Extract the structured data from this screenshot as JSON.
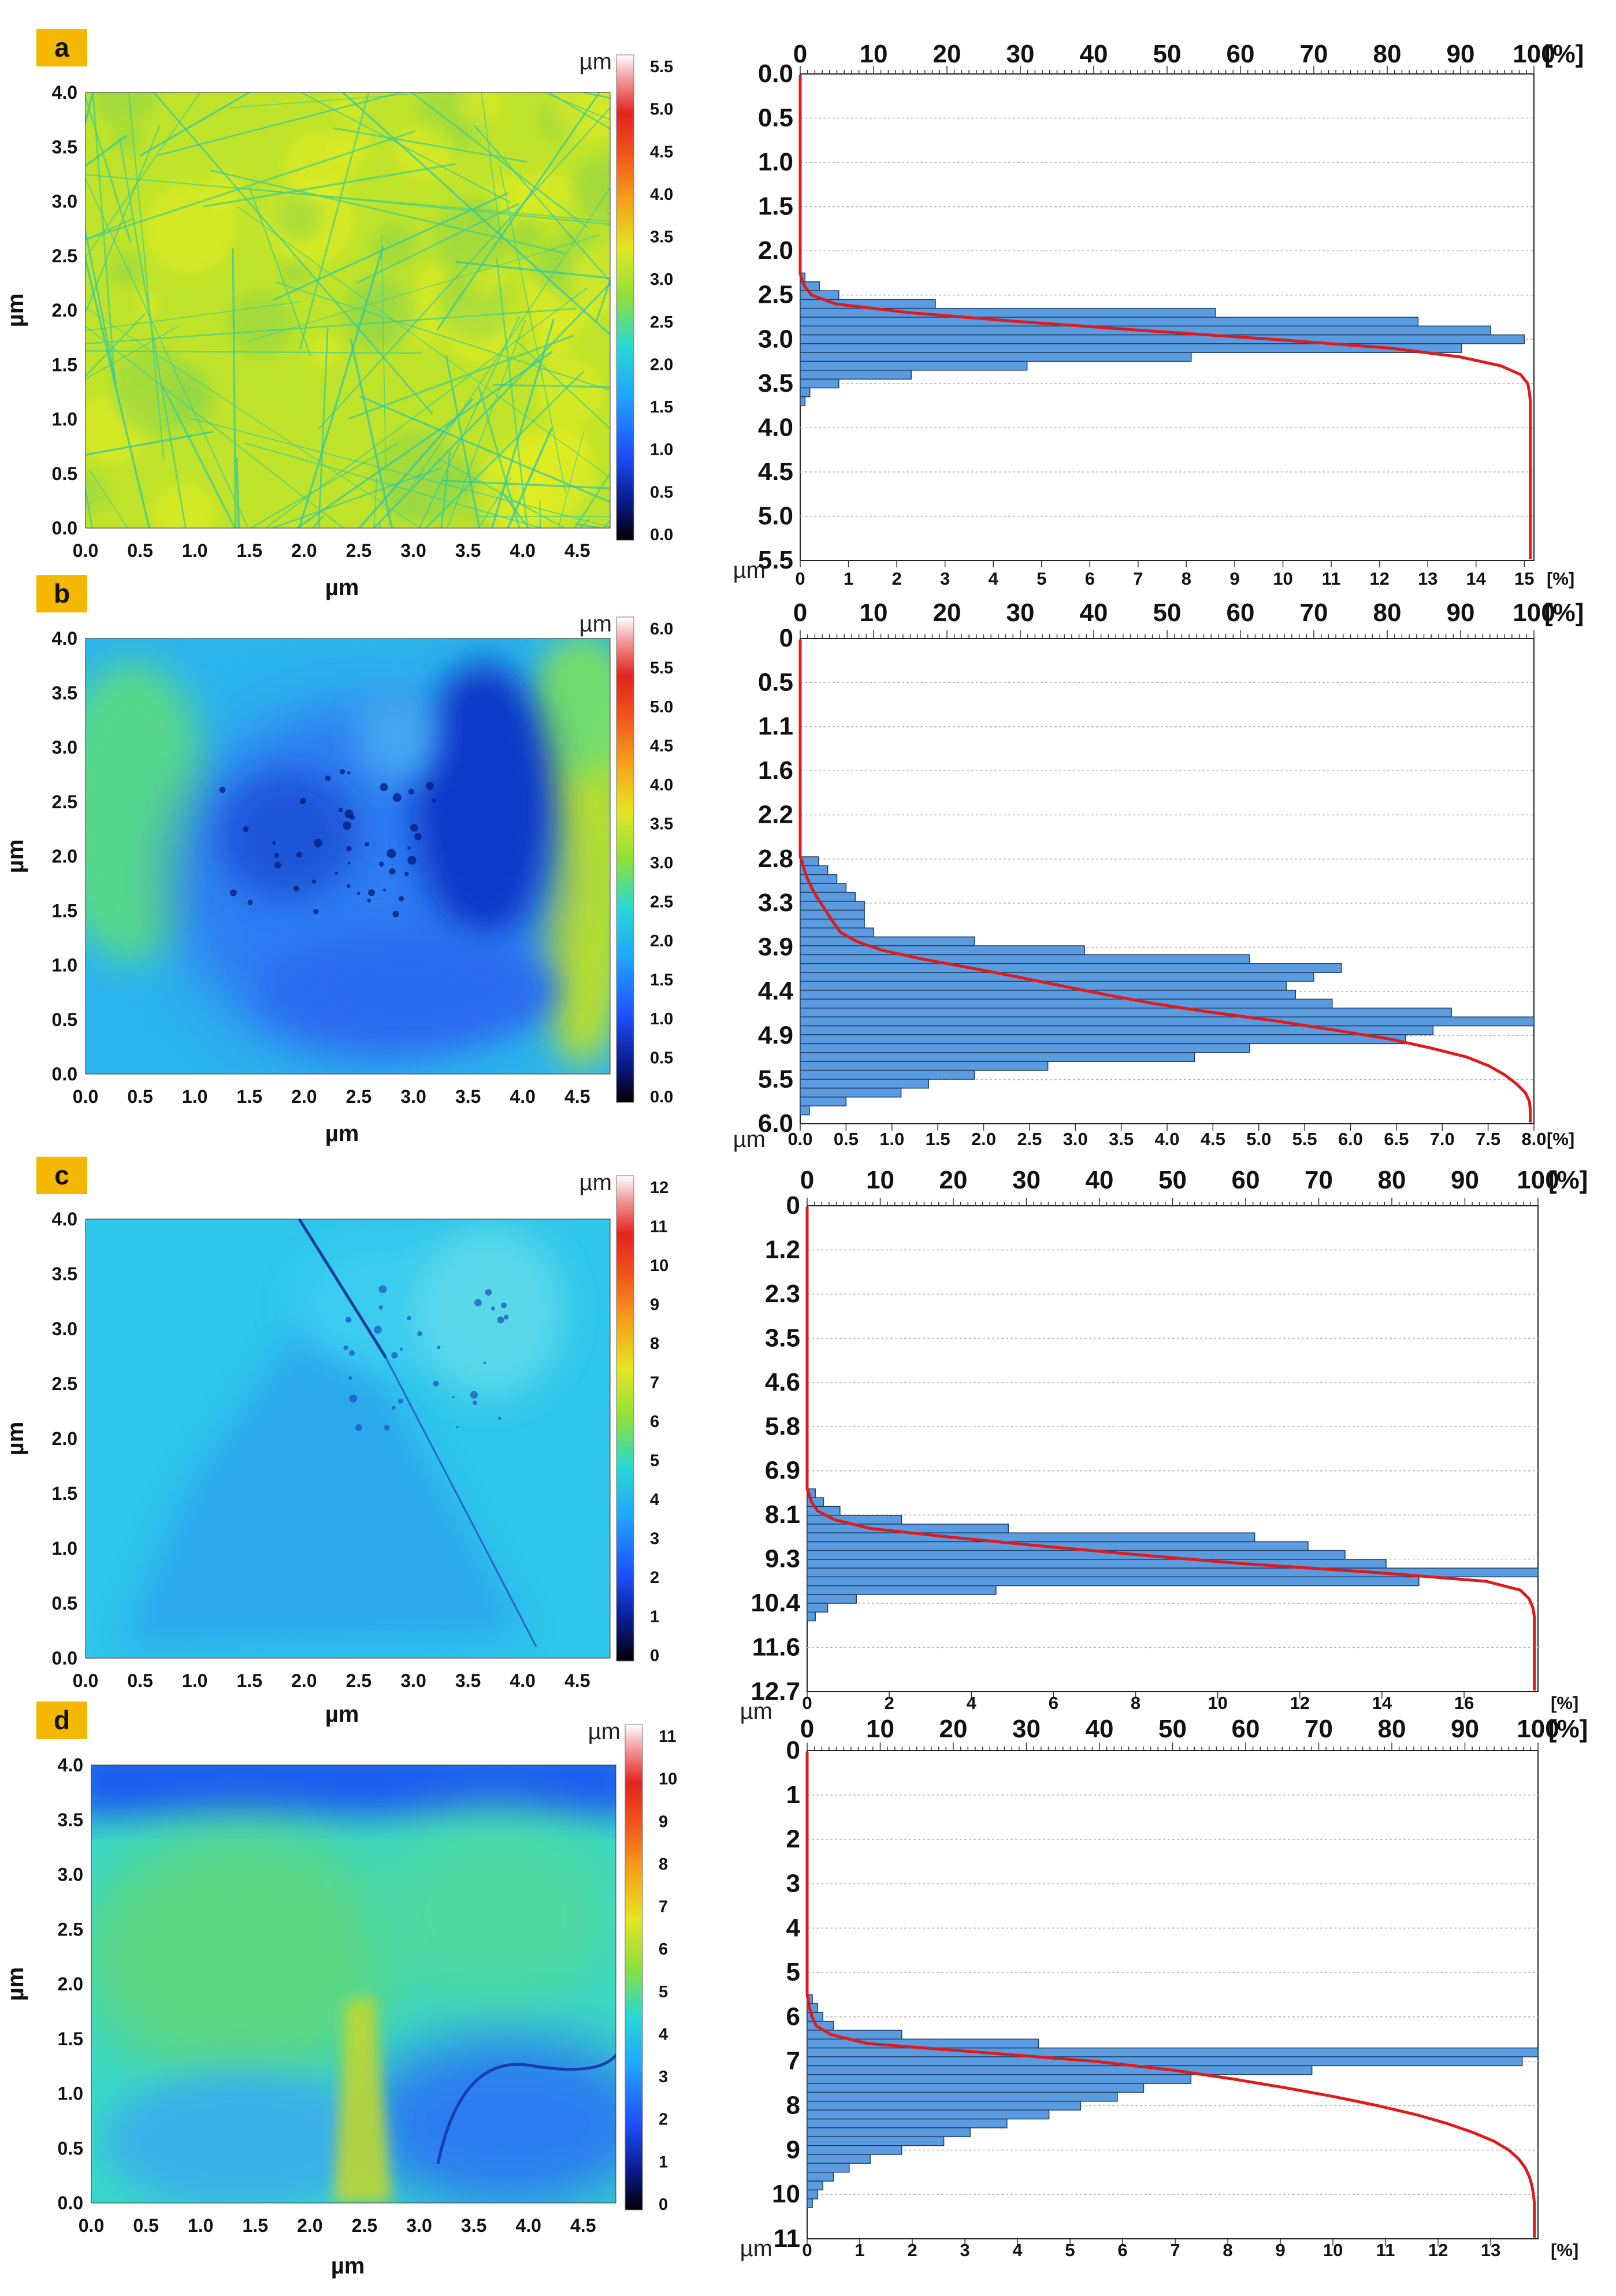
{
  "figure": {
    "colors": {
      "panel_label_bg": "#f5b800",
      "bar_fill": "#5b9be0",
      "bar_stroke": "#1f3f66",
      "cumulative_line": "#e01a1a",
      "grid": "#b5b5b5"
    },
    "map_xlabel": "µm",
    "map_ylabel": "µm",
    "map_x_ticks": [
      "0.0",
      "0.5",
      "1.0",
      "1.5",
      "2.0",
      "2.5",
      "3.0",
      "3.5",
      "4.0",
      "4.5"
    ],
    "map_y_ticks": [
      "0.0",
      "0.5",
      "1.0",
      "1.5",
      "2.0",
      "2.5",
      "3.0",
      "3.5",
      "4.0"
    ],
    "cumulative_axis_unit": "[%]",
    "cumulative_ticks": [
      "0",
      "10",
      "20",
      "30",
      "40",
      "50",
      "60",
      "70",
      "80",
      "90",
      "100"
    ],
    "hist_axis_unit": "[%]",
    "colorbar_unit": "µm"
  },
  "chart_data": [
    {
      "id": "a",
      "label": "a",
      "type": "bar",
      "map_theme": "scratches",
      "colorbar_ticks": [
        "0.0",
        "0.5",
        "1.0",
        "1.5",
        "2.0",
        "2.5",
        "3.0",
        "3.5",
        "4.0",
        "4.5",
        "5.0",
        "5.5"
      ],
      "depth_ticks": [
        "0.0",
        "0.5",
        "1.0",
        "1.5",
        "2.0",
        "2.5",
        "3.0",
        "3.5",
        "4.0",
        "4.5",
        "5.0",
        "5.5"
      ],
      "depth_range": [
        0,
        5.5
      ],
      "hist_ticks": [
        "0",
        "1",
        "2",
        "3",
        "4",
        "5",
        "6",
        "7",
        "8",
        "9",
        "10",
        "11",
        "12",
        "13",
        "14",
        "15"
      ],
      "hist_max": 15.2,
      "hist_start": 2.25,
      "hist_bin": 0.1,
      "hist_values": [
        0.1,
        0.4,
        0.8,
        2.8,
        8.6,
        12.8,
        14.3,
        15.0,
        13.7,
        8.1,
        4.7,
        2.3,
        0.8,
        0.2,
        0.1
      ],
      "yaxis_unit": "µm"
    },
    {
      "id": "b",
      "label": "b",
      "type": "bar",
      "map_theme": "blob",
      "colorbar_ticks": [
        "0.0",
        "0.5",
        "1.0",
        "1.5",
        "2.0",
        "2.5",
        "3.0",
        "3.5",
        "4.0",
        "4.5",
        "5.0",
        "5.5",
        "6.0"
      ],
      "depth_ticks": [
        "0",
        "0.5",
        "1.1",
        "1.6",
        "2.2",
        "2.8",
        "3.3",
        "3.9",
        "4.4",
        "4.9",
        "5.5",
        "6.0"
      ],
      "depth_range": [
        0,
        6.0
      ],
      "hist_ticks": [
        "0.0",
        "0.5",
        "1.0",
        "1.5",
        "2.0",
        "2.5",
        "3.0",
        "3.5",
        "4.0",
        "4.5",
        "5.0",
        "5.5",
        "6.0",
        "6.5",
        "7.0",
        "7.5",
        "8.0"
      ],
      "hist_max": 8.0,
      "hist_start": 2.7,
      "hist_bin": 0.11,
      "hist_values": [
        0.2,
        0.3,
        0.4,
        0.5,
        0.6,
        0.7,
        0.7,
        0.7,
        0.8,
        1.9,
        3.1,
        4.9,
        5.9,
        5.6,
        5.3,
        5.4,
        5.8,
        7.1,
        8.0,
        6.9,
        6.6,
        4.9,
        4.3,
        2.7,
        1.9,
        1.4,
        1.1,
        0.5,
        0.1
      ],
      "yaxis_unit": "µm"
    },
    {
      "id": "c",
      "label": "c",
      "type": "bar",
      "map_theme": "crack",
      "colorbar_ticks": [
        "0",
        "1",
        "2",
        "3",
        "4",
        "5",
        "6",
        "7",
        "8",
        "9",
        "10",
        "11",
        "12"
      ],
      "depth_ticks": [
        "0",
        "1.2",
        "2.3",
        "3.5",
        "4.6",
        "5.8",
        "6.9",
        "8.1",
        "9.3",
        "10.4",
        "11.6",
        "12.7"
      ],
      "depth_range": [
        0,
        12.7
      ],
      "hist_ticks": [
        "0",
        "2",
        "4",
        "6",
        "8",
        "10",
        "12",
        "14",
        "16"
      ],
      "hist_max": 17.8,
      "hist_start": 7.4,
      "hist_bin": 0.23,
      "hist_values": [
        0.2,
        0.4,
        0.8,
        2.3,
        4.9,
        10.9,
        12.2,
        13.1,
        14.1,
        17.8,
        14.9,
        4.6,
        1.2,
        0.5,
        0.2
      ],
      "yaxis_unit": "µm"
    },
    {
      "id": "d",
      "label": "d",
      "type": "bar",
      "map_theme": "band",
      "colorbar_ticks": [
        "0",
        "1",
        "2",
        "3",
        "4",
        "5",
        "6",
        "7",
        "8",
        "9",
        "10",
        "11"
      ],
      "depth_ticks": [
        "0",
        "1",
        "2",
        "3",
        "4",
        "5",
        "6",
        "7",
        "8",
        "9",
        "10",
        "11"
      ],
      "depth_range": [
        0,
        11
      ],
      "hist_ticks": [
        "0",
        "1",
        "2",
        "3",
        "4",
        "5",
        "6",
        "7",
        "8",
        "9",
        "10",
        "11",
        "12",
        "13"
      ],
      "hist_max": 13.9,
      "hist_start": 5.5,
      "hist_bin": 0.2,
      "hist_values": [
        0.1,
        0.2,
        0.3,
        0.5,
        1.8,
        4.4,
        13.9,
        13.6,
        9.6,
        7.3,
        6.4,
        5.9,
        5.2,
        4.6,
        3.8,
        3.1,
        2.6,
        1.8,
        1.2,
        0.8,
        0.5,
        0.3,
        0.2,
        0.1
      ],
      "yaxis_unit": "µm"
    }
  ]
}
